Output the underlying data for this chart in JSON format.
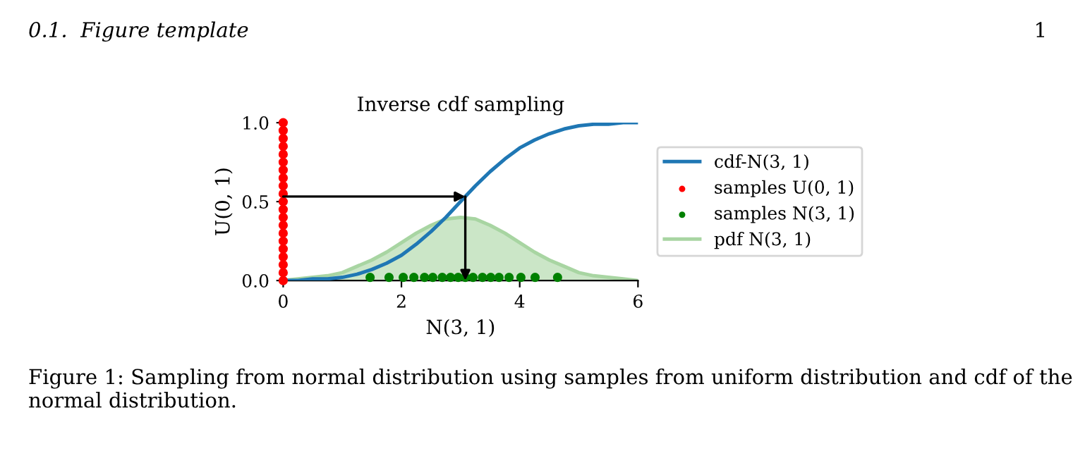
{
  "chart_data": {
    "type": "line",
    "title": "Inverse cdf sampling",
    "xlabel": "N(3, 1)",
    "ylabel": "U(0, 1)",
    "annotations": [
      "0.1.  Figure template",
      "1",
      "Figure 1: Sampling from normal distribution using samples from uniform distribution and cdf of the normal distribution."
    ],
    "xlim": [
      0,
      6
    ],
    "ylim": [
      0,
      1
    ],
    "xticks": [
      0,
      2,
      4,
      6
    ],
    "yticks": [
      {
        "value": 0,
        "label": "0.0"
      },
      0.5,
      {
        "value": 1,
        "label": "1.0"
      }
    ],
    "legend": "right",
    "series": [
      {
        "name": "cdf-N(3, 1)",
        "color": "#1f77b4",
        "x": [
          0,
          0.25,
          0.5,
          0.75,
          1,
          1.25,
          1.5,
          1.75,
          2,
          2.25,
          2.5,
          2.75,
          3,
          3.25,
          3.5,
          3.75,
          4,
          4.25,
          4.5,
          4.75,
          5,
          5.25,
          5.5,
          5.75,
          6
        ],
        "values": [
          0,
          0,
          0.01,
          0.01,
          0.02,
          0.04,
          0.07,
          0.11,
          0.16,
          0.23,
          0.31,
          0.4,
          0.5,
          0.6,
          0.69,
          0.77,
          0.84,
          0.89,
          0.93,
          0.96,
          0.98,
          0.99,
          0.99,
          1,
          1
        ]
      },
      {
        "name": "samples U(0, 1)",
        "type": "scatter",
        "color": "#ff0000",
        "x": [
          0,
          0,
          0,
          0,
          0,
          0,
          0,
          0,
          0,
          0,
          0,
          0,
          0,
          0,
          0,
          0,
          0,
          0,
          0,
          0,
          0
        ],
        "values": [
          0,
          0.05,
          0.1,
          0.15,
          0.2,
          0.25,
          0.3,
          0.35,
          0.4,
          0.45,
          0.5,
          0.55,
          0.6,
          0.65,
          0.7,
          0.75,
          0.8,
          0.85,
          0.9,
          0.95,
          1
        ]
      },
      {
        "name": "samples N(3, 1)",
        "type": "scatter",
        "color": "#008000",
        "x": [
          1.47,
          1.79,
          2.03,
          2.21,
          2.39,
          2.53,
          2.69,
          2.83,
          2.96,
          3.08,
          3.21,
          3.37,
          3.51,
          3.65,
          3.82,
          4.02,
          4.26,
          4.64
        ],
        "values": [
          0.02,
          0.02,
          0.02,
          0.02,
          0.02,
          0.02,
          0.02,
          0.02,
          0.02,
          0.02,
          0.02,
          0.02,
          0.02,
          0.02,
          0.02,
          0.02,
          0.02,
          0.02
        ]
      },
      {
        "name": "pdf N(3, 1)",
        "type": "area",
        "color": "#a8d5a2",
        "x": [
          0,
          0.25,
          0.5,
          0.75,
          1,
          1.25,
          1.5,
          1.75,
          2,
          2.25,
          2.5,
          2.75,
          3,
          3.25,
          3.5,
          3.75,
          4,
          4.25,
          4.5,
          4.75,
          5,
          5.25,
          5.5,
          5.75,
          6
        ],
        "values": [
          0,
          0.01,
          0.02,
          0.03,
          0.05,
          0.09,
          0.13,
          0.18,
          0.24,
          0.3,
          0.35,
          0.39,
          0.4,
          0.39,
          0.35,
          0.3,
          0.24,
          0.18,
          0.13,
          0.09,
          0.05,
          0.03,
          0.02,
          0.01,
          0
        ]
      }
    ]
  }
}
